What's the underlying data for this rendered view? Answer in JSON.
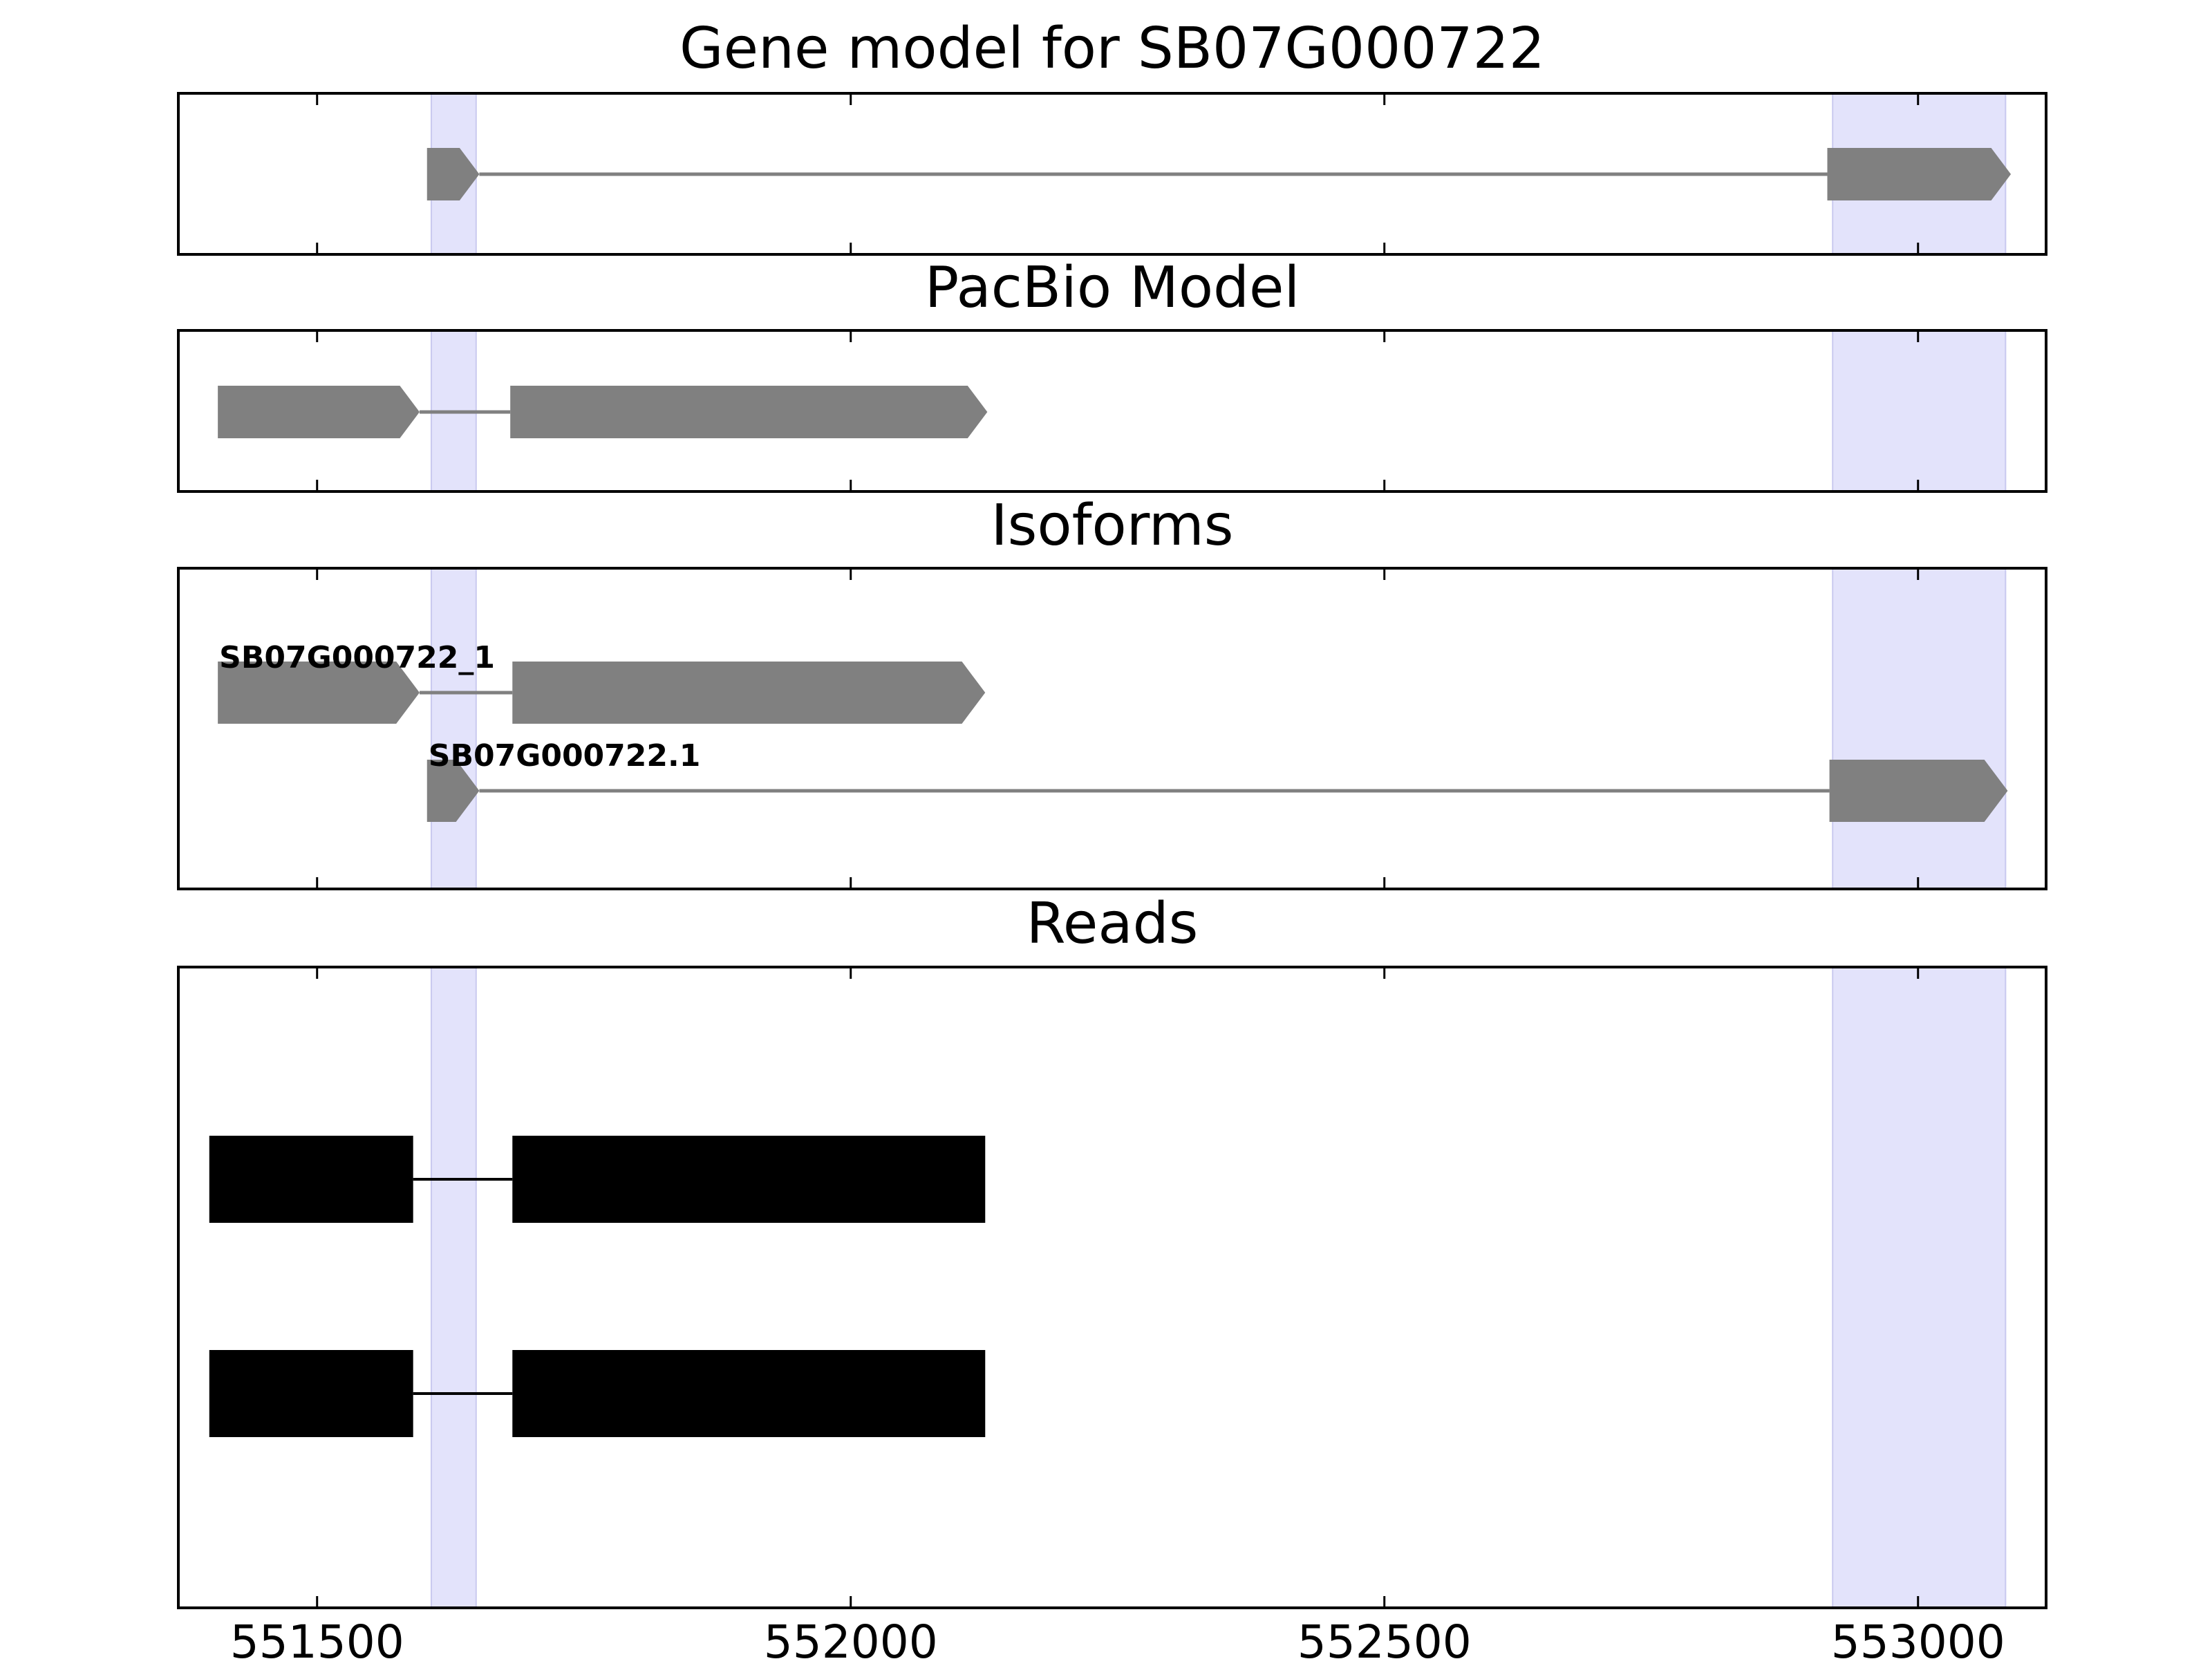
{
  "chart_data": {
    "type": "gene-track",
    "x_domain": [
      551370,
      553120
    ],
    "x_ticks": [
      551500,
      552000,
      552500,
      553000
    ],
    "highlight_regions": [
      [
        551607,
        551649
      ],
      [
        552920,
        553082
      ]
    ],
    "colors": {
      "highlight": "#e3e3fb",
      "highlight_edge": "#c9c9ef",
      "model": "#808080",
      "read": "#000000",
      "axes": "#000000"
    },
    "panels": [
      {
        "key": "gene",
        "title": "Gene model for SB07G000722",
        "features": [
          {
            "label": "",
            "exons": [
              [
                551603,
                551652
              ],
              [
                552915,
                553087
              ]
            ],
            "strand": "+"
          }
        ]
      },
      {
        "key": "pacbio",
        "title": "PacBio Model",
        "features": [
          {
            "label": "",
            "exons": [
              [
                551407,
                551596
              ],
              [
                551681,
                552128
              ]
            ],
            "strand": "+"
          }
        ]
      },
      {
        "key": "isoforms",
        "title": "Isoforms",
        "features": [
          {
            "label": "SB07G000722_1",
            "exons": [
              [
                551407,
                551596
              ],
              [
                551683,
                552126
              ]
            ],
            "strand": "+"
          },
          {
            "label": "SB07G000722.1",
            "exons": [
              [
                551603,
                551652
              ],
              [
                552917,
                553084
              ]
            ],
            "strand": "+"
          }
        ]
      },
      {
        "key": "reads",
        "title": "Reads",
        "features": [
          {
            "label": "",
            "exons": [
              [
                551399,
                551590
              ],
              [
                551683,
                552126
              ]
            ],
            "strand": ""
          },
          {
            "label": "",
            "exons": [
              [
                551399,
                551590
              ],
              [
                551683,
                552126
              ]
            ],
            "strand": ""
          }
        ]
      }
    ]
  }
}
